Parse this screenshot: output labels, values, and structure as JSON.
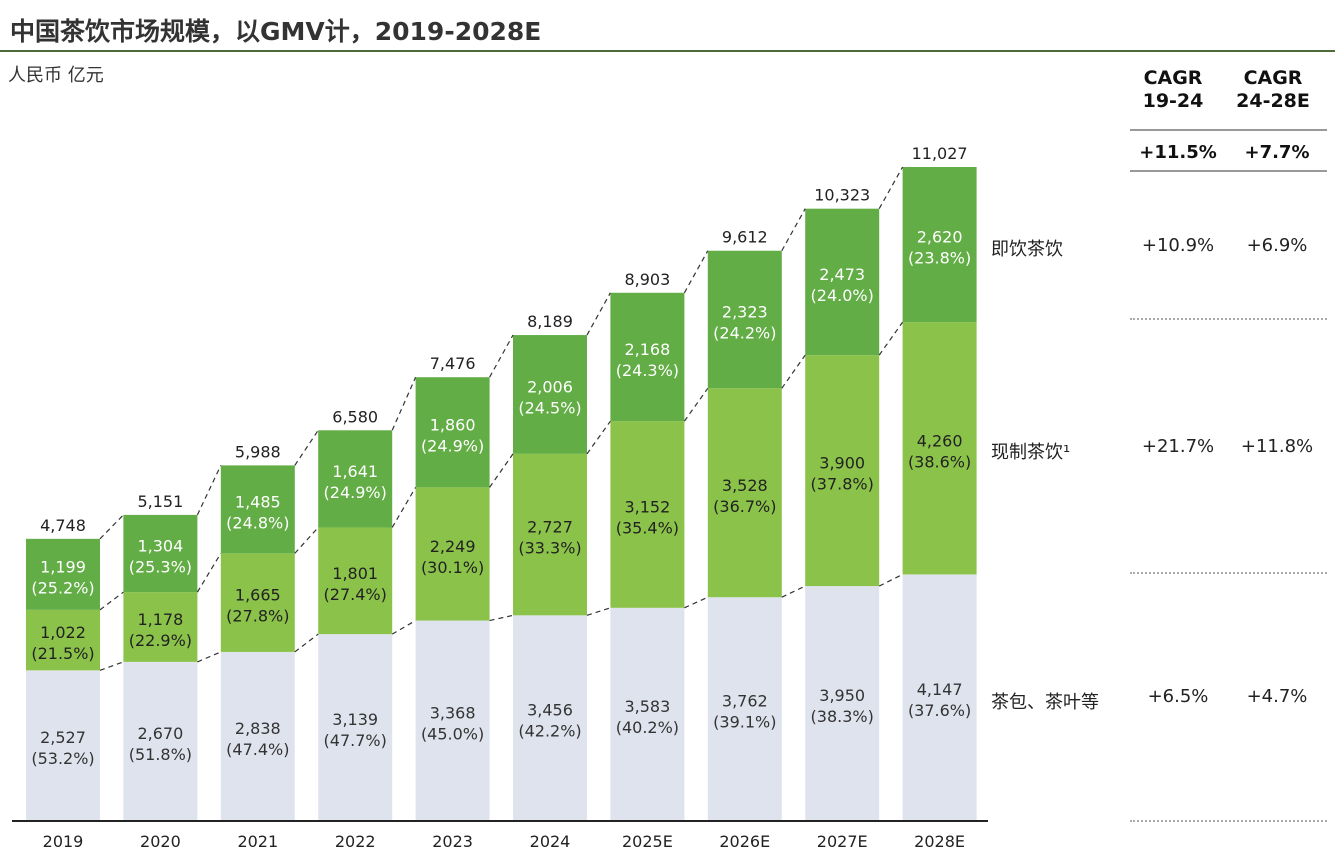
{
  "title": "中国茶饮市场规模，以GMV计，2019-2028E",
  "unit": "人民币 亿元",
  "colors": {
    "rtd": "#62ad45",
    "fresh": "#8bc34a",
    "tea": "#dfe3ee",
    "axis": "#222222",
    "rule": "#4e6b3a"
  },
  "chart_data": {
    "type": "bar",
    "stacked": true,
    "categories": [
      "2019",
      "2020",
      "2021",
      "2022",
      "2023",
      "2024",
      "2025E",
      "2026E",
      "2027E",
      "2028E"
    ],
    "totals": [
      4748,
      5151,
      5988,
      6580,
      7476,
      8189,
      8903,
      9612,
      10323,
      11027
    ],
    "total_labels": [
      "4,748",
      "5,151",
      "5,988",
      "6,580",
      "7,476",
      "8,189",
      "8,903",
      "9,612",
      "10,323",
      "11,027"
    ],
    "series": [
      {
        "name": "茶包、茶叶等",
        "values": [
          2527,
          2670,
          2838,
          3139,
          3368,
          3456,
          3583,
          3762,
          3950,
          4147
        ],
        "labels": [
          "2,527",
          "2,670",
          "2,838",
          "3,139",
          "3,368",
          "3,456",
          "3,583",
          "3,762",
          "3,950",
          "4,147"
        ],
        "shares": [
          "(53.2%)",
          "(51.8%)",
          "(47.4%)",
          "(47.7%)",
          "(45.0%)",
          "(42.2%)",
          "(40.2%)",
          "(39.1%)",
          "(38.3%)",
          "(37.6%)"
        ]
      },
      {
        "name": "现制茶饮¹",
        "values": [
          1022,
          1178,
          1665,
          1801,
          2249,
          2727,
          3152,
          3528,
          3900,
          4260
        ],
        "labels": [
          "1,022",
          "1,178",
          "1,665",
          "1,801",
          "2,249",
          "2,727",
          "3,152",
          "3,528",
          "3,900",
          "4,260"
        ],
        "shares": [
          "(21.5%)",
          "(22.9%)",
          "(27.8%)",
          "(27.4%)",
          "(30.1%)",
          "(33.3%)",
          "(35.4%)",
          "(36.7%)",
          "(37.8%)",
          "(38.6%)"
        ]
      },
      {
        "name": "即饮茶饮",
        "values": [
          1199,
          1304,
          1485,
          1641,
          1860,
          2006,
          2168,
          2323,
          2473,
          2620
        ],
        "labels": [
          "1,199",
          "1,304",
          "1,485",
          "1,641",
          "1,860",
          "2,006",
          "2,168",
          "2,323",
          "2,473",
          "2,620"
        ],
        "shares": [
          "(25.2%)",
          "(25.3%)",
          "(24.8%)",
          "(24.9%)",
          "(24.9%)",
          "(24.5%)",
          "(24.3%)",
          "(24.2%)",
          "(24.0%)",
          "(23.8%)"
        ]
      }
    ],
    "ylim": [
      0,
      11500
    ]
  },
  "cagr": {
    "headers": [
      {
        "line1": "CAGR",
        "line2": "19-24"
      },
      {
        "line1": "CAGR",
        "line2": "24-28E"
      }
    ],
    "totals": [
      "+11.5%",
      "+7.7%"
    ],
    "rows": [
      {
        "label": "即饮茶饮",
        "values": [
          "+10.9%",
          "+6.9%"
        ]
      },
      {
        "label": "现制茶饮¹",
        "values": [
          "+21.7%",
          "+11.8%"
        ]
      },
      {
        "label": "茶包、茶叶等",
        "values": [
          "+6.5%",
          "+4.7%"
        ]
      }
    ]
  }
}
